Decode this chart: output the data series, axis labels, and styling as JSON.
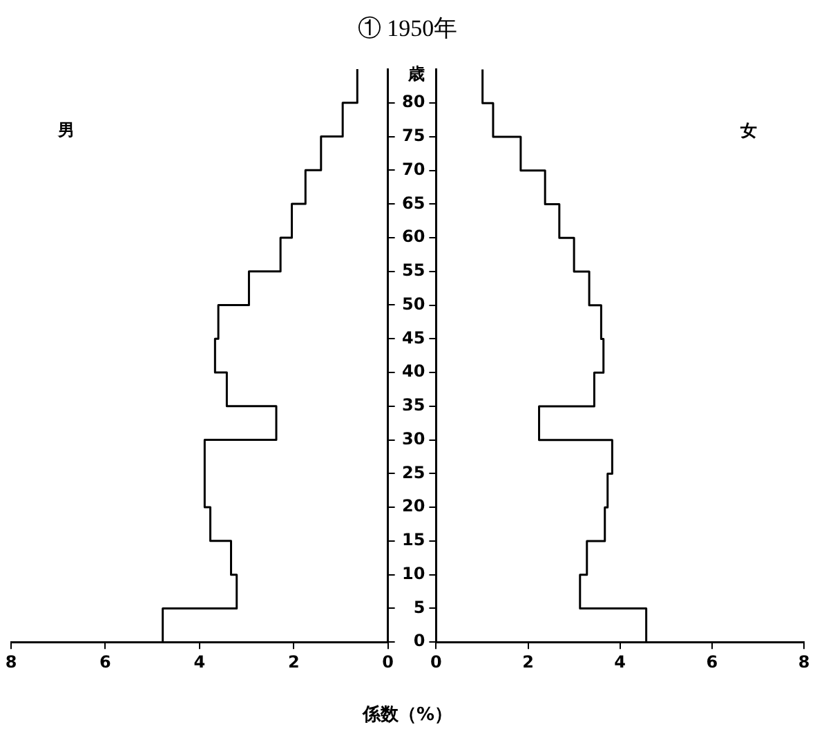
{
  "chart_data": [
    {
      "type": "histogram",
      "orientation": "horizontal",
      "title": "① 1950年",
      "xlabel": "係数（%）",
      "annotations": [
        "男"
      ],
      "color": "#000000",
      "bins": [
        0,
        5,
        10,
        15,
        20,
        25,
        30,
        35,
        40,
        45,
        50,
        55,
        60,
        65,
        70,
        75,
        80,
        85
      ],
      "values": [
        4.78,
        3.21,
        3.33,
        3.77,
        3.89,
        3.89,
        2.37,
        3.42,
        3.67,
        3.6,
        2.95,
        2.28,
        2.04,
        1.75,
        1.42,
        0.96,
        0.65
      ],
      "xlim": [
        8,
        0
      ],
      "xticks": [
        8,
        6,
        4,
        2,
        0
      ],
      "ylim": [
        0,
        85
      ],
      "yticks": [
        0,
        5,
        10,
        15,
        20,
        25,
        30,
        35,
        40,
        45,
        50,
        55,
        60,
        65,
        70,
        75,
        80
      ],
      "tick_labels": "x",
      "grid": false
    },
    {
      "type": "histogram",
      "orientation": "horizontal",
      "ylabel": "歳",
      "annotations": [
        "女"
      ],
      "color": "#000000",
      "bins": [
        0,
        5,
        10,
        15,
        20,
        25,
        30,
        35,
        40,
        45,
        50,
        55,
        60,
        65,
        70,
        75,
        80,
        85
      ],
      "values": [
        4.57,
        3.13,
        3.28,
        3.67,
        3.73,
        3.83,
        2.24,
        3.44,
        3.64,
        3.59,
        3.33,
        3.0,
        2.68,
        2.37,
        1.84,
        1.24,
        1.01
      ],
      "xlim": [
        0,
        8
      ],
      "xticks": [
        0,
        2,
        4,
        6,
        8
      ],
      "ylim": [
        0,
        85
      ],
      "yticks": [
        0,
        5,
        10,
        15,
        20,
        25,
        30,
        35,
        40,
        45,
        50,
        55,
        60,
        65,
        70,
        75,
        80
      ],
      "grid": false
    }
  ]
}
